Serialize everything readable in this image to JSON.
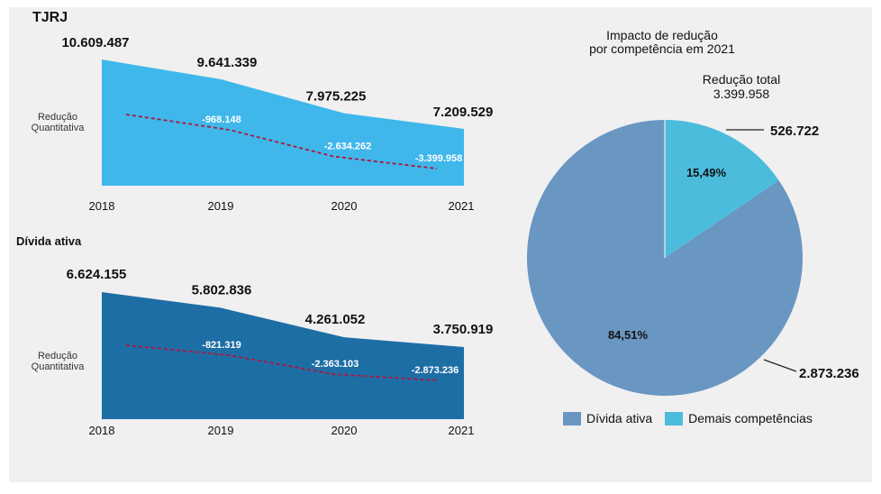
{
  "colors": {
    "background": "#f0f0f0",
    "area_tjrj": "#3fb7eb",
    "area_divida": "#1e6ea6",
    "dashed_line": "#b0163a",
    "pie_divida": "#6a96c2",
    "pie_demais": "#4cbcdc"
  },
  "chart_data": [
    {
      "type": "area",
      "title": "TJRJ",
      "side_label": "Redução\nQuantitativa",
      "categories": [
        "2018",
        "2019",
        "2020",
        "2021"
      ],
      "series": [
        {
          "values": [
            10609487,
            9641339,
            7975225,
            7209529
          ],
          "labels": [
            "10.609.487",
            "9.641.339",
            "7.975.225",
            "7.209.529"
          ]
        },
        {
          "style": "dashed",
          "values": [
            0,
            -968148,
            -2634262,
            -3399958
          ],
          "labels": [
            "",
            "-968.148",
            "-2.634.262",
            "-3.399.958"
          ]
        }
      ]
    },
    {
      "type": "area",
      "title": "Dívida ativa",
      "side_label": "Redução\nQuantitativa",
      "categories": [
        "2018",
        "2019",
        "2020",
        "2021"
      ],
      "series": [
        {
          "values": [
            6624155,
            5802836,
            4261052,
            3750919
          ],
          "labels": [
            "6.624.155",
            "5.802.836",
            "4.261.052",
            "3.750.919"
          ]
        },
        {
          "style": "dashed",
          "values": [
            0,
            -821319,
            -2363103,
            -2873236
          ],
          "labels": [
            "",
            "-821.319",
            "-2.363.103",
            "-2.873.236"
          ]
        }
      ]
    },
    {
      "type": "pie",
      "title": "Impacto de redução\npor competência em 2021",
      "subtitle": "Redução total\n3.399.958",
      "slices": [
        {
          "name": "Dívida ativa",
          "value": 2873236,
          "label": "2.873.236",
          "percent": "84,51%"
        },
        {
          "name": "Demais competências",
          "value": 526722,
          "label": "526.722",
          "percent": "15,49%"
        }
      ],
      "legend": "bottom"
    }
  ]
}
